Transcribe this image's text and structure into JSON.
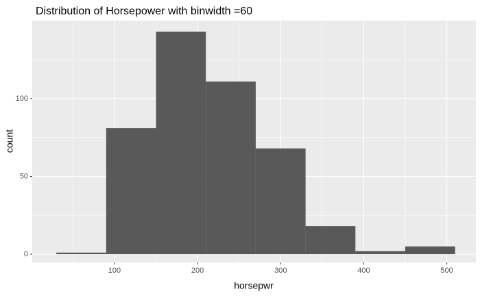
{
  "chart_data": {
    "type": "histogram",
    "title": "Distribution of Horsepower with binwidth =60",
    "x_label": "horsepwr",
    "y_label": "count",
    "bins": [
      30,
      90,
      150,
      210,
      270,
      330,
      390,
      450,
      510
    ],
    "values": [
      1,
      81,
      143,
      111,
      68,
      18,
      2,
      5
    ],
    "color": "#595959",
    "xlim": [
      1,
      535
    ],
    "ylim": [
      -5.3,
      150.2
    ],
    "xticks": [
      100,
      200,
      300,
      400,
      500
    ],
    "yticks": [
      0,
      50,
      100
    ],
    "xminor": [
      50,
      150,
      250,
      350,
      450
    ],
    "yminor": [
      25,
      75,
      125
    ],
    "grid": true
  }
}
